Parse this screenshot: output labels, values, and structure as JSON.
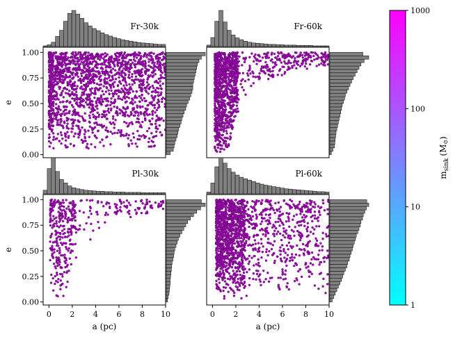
{
  "colors": {
    "points": "#b000c8",
    "point_edge": "#3a003f",
    "hist_fill": "#808080",
    "hist_edge": "#000000",
    "cbar_low": "#00ffff",
    "cbar_high": "#ff00ff"
  },
  "colorbar": {
    "label_main": "m",
    "label_sub": "sink",
    "label_unit": "(M",
    "label_sun": "⊙",
    "label_close": ")",
    "scale": "log",
    "range": [
      1,
      1000
    ],
    "ticks": [
      {
        "value": 1,
        "label": "1"
      },
      {
        "value": 10,
        "label": "10"
      },
      {
        "value": 100,
        "label": "100"
      },
      {
        "value": 1000,
        "label": "1000"
      }
    ]
  },
  "chart_data": [
    {
      "type": "scatter",
      "title": "Fr-30k",
      "xlabel": "",
      "ylabel": "e",
      "xlim": [
        -0.5,
        10
      ],
      "ylim": [
        -0.03,
        1.05
      ],
      "xticks": [],
      "yticks": [
        {
          "value": 0.0,
          "label": "0.00"
        },
        {
          "value": 0.25,
          "label": "0.25"
        },
        {
          "value": 0.5,
          "label": "0.50"
        },
        {
          "value": 0.75,
          "label": "0.75"
        },
        {
          "value": 1.0,
          "label": "1.00"
        }
      ],
      "hist_a_density": [
        0.02,
        0.05,
        0.12,
        0.28,
        0.45,
        0.7,
        0.92,
        1.0,
        0.9,
        0.78,
        0.66,
        0.57,
        0.5,
        0.44,
        0.38,
        0.33,
        0.29,
        0.25,
        0.22,
        0.19,
        0.17,
        0.15,
        0.13,
        0.11,
        0.1,
        0.09,
        0.08,
        0.07,
        0.06,
        0.06
      ],
      "hist_e_density": [
        0.1,
        0.18,
        0.2,
        0.22,
        0.25,
        0.28,
        0.3,
        0.32,
        0.35,
        0.38,
        0.4,
        0.43,
        0.46,
        0.5,
        0.52,
        0.56,
        0.6,
        0.63,
        0.66,
        0.68,
        0.68,
        0.7,
        0.72,
        0.74,
        0.76,
        0.78,
        0.8,
        0.84,
        0.9,
        1.0
      ]
    },
    {
      "type": "scatter",
      "title": "Fr-60k",
      "xlabel": "",
      "ylabel": "",
      "xlim": [
        -0.5,
        10
      ],
      "ylim": [
        -0.03,
        1.05
      ],
      "xticks": [],
      "yticks": [],
      "hist_a_density": [
        0.04,
        0.25,
        0.7,
        1.0,
        0.68,
        0.45,
        0.32,
        0.24,
        0.19,
        0.15,
        0.12,
        0.1,
        0.09,
        0.08,
        0.07,
        0.06,
        0.06,
        0.05,
        0.05,
        0.04,
        0.04,
        0.04,
        0.03,
        0.03,
        0.03,
        0.03,
        0.02,
        0.02,
        0.02,
        0.02
      ],
      "hist_e_density": [
        0.04,
        0.08,
        0.12,
        0.13,
        0.14,
        0.15,
        0.16,
        0.18,
        0.2,
        0.22,
        0.24,
        0.26,
        0.28,
        0.3,
        0.32,
        0.35,
        0.38,
        0.4,
        0.44,
        0.48,
        0.52,
        0.56,
        0.6,
        0.65,
        0.7,
        0.75,
        0.8,
        0.88,
        1.0,
        0.85
      ]
    },
    {
      "type": "scatter",
      "title": "Pl-30k",
      "xlabel": "a (pc)",
      "ylabel": "e",
      "xlim": [
        -0.5,
        10
      ],
      "ylim": [
        -0.03,
        1.05
      ],
      "xticks": [
        {
          "value": 0,
          "label": "0"
        },
        {
          "value": 2,
          "label": "2"
        },
        {
          "value": 4,
          "label": "4"
        },
        {
          "value": 6,
          "label": "6"
        },
        {
          "value": 8,
          "label": "8"
        },
        {
          "value": 10,
          "label": "10"
        }
      ],
      "yticks": [
        {
          "value": 0.0,
          "label": "0.00"
        },
        {
          "value": 0.25,
          "label": "0.25"
        },
        {
          "value": 0.5,
          "label": "0.50"
        },
        {
          "value": 0.75,
          "label": "0.75"
        },
        {
          "value": 1.0,
          "label": "1.00"
        }
      ],
      "hist_a_density": [
        0.1,
        0.7,
        1.0,
        0.62,
        0.4,
        0.3,
        0.22,
        0.17,
        0.14,
        0.12,
        0.1,
        0.09,
        0.08,
        0.07,
        0.07,
        0.06,
        0.06,
        0.05,
        0.05,
        0.05,
        0.04,
        0.04,
        0.04,
        0.04,
        0.03,
        0.03,
        0.03,
        0.03,
        0.03,
        0.03
      ],
      "hist_e_density": [
        0.03,
        0.05,
        0.07,
        0.08,
        0.09,
        0.1,
        0.1,
        0.11,
        0.12,
        0.13,
        0.14,
        0.15,
        0.17,
        0.19,
        0.2,
        0.22,
        0.25,
        0.28,
        0.31,
        0.35,
        0.4,
        0.45,
        0.5,
        0.55,
        0.62,
        0.7,
        0.78,
        0.88,
        1.0,
        0.9
      ]
    },
    {
      "type": "scatter",
      "title": "Pl-60k",
      "xlabel": "a (pc)",
      "ylabel": "",
      "xlim": [
        -0.5,
        10
      ],
      "ylim": [
        -0.03,
        1.05
      ],
      "xticks": [
        {
          "value": 0,
          "label": "0"
        },
        {
          "value": 2,
          "label": "2"
        },
        {
          "value": 4,
          "label": "4"
        },
        {
          "value": 6,
          "label": "6"
        },
        {
          "value": 8,
          "label": "8"
        },
        {
          "value": 10,
          "label": "10"
        }
      ],
      "yticks": [],
      "hist_a_density": [
        0.05,
        0.3,
        0.75,
        1.0,
        0.85,
        0.7,
        0.6,
        0.52,
        0.46,
        0.42,
        0.38,
        0.34,
        0.3,
        0.27,
        0.24,
        0.22,
        0.2,
        0.18,
        0.16,
        0.14,
        0.13,
        0.12,
        0.11,
        0.1,
        0.09,
        0.08,
        0.07,
        0.06,
        0.06,
        0.05
      ],
      "hist_e_density": [
        0.06,
        0.1,
        0.14,
        0.18,
        0.22,
        0.26,
        0.3,
        0.33,
        0.36,
        0.4,
        0.44,
        0.46,
        0.5,
        0.52,
        0.55,
        0.58,
        0.6,
        0.63,
        0.66,
        0.68,
        0.72,
        0.75,
        0.78,
        0.8,
        0.84,
        0.86,
        0.9,
        0.94,
        1.0,
        0.95
      ]
    }
  ]
}
